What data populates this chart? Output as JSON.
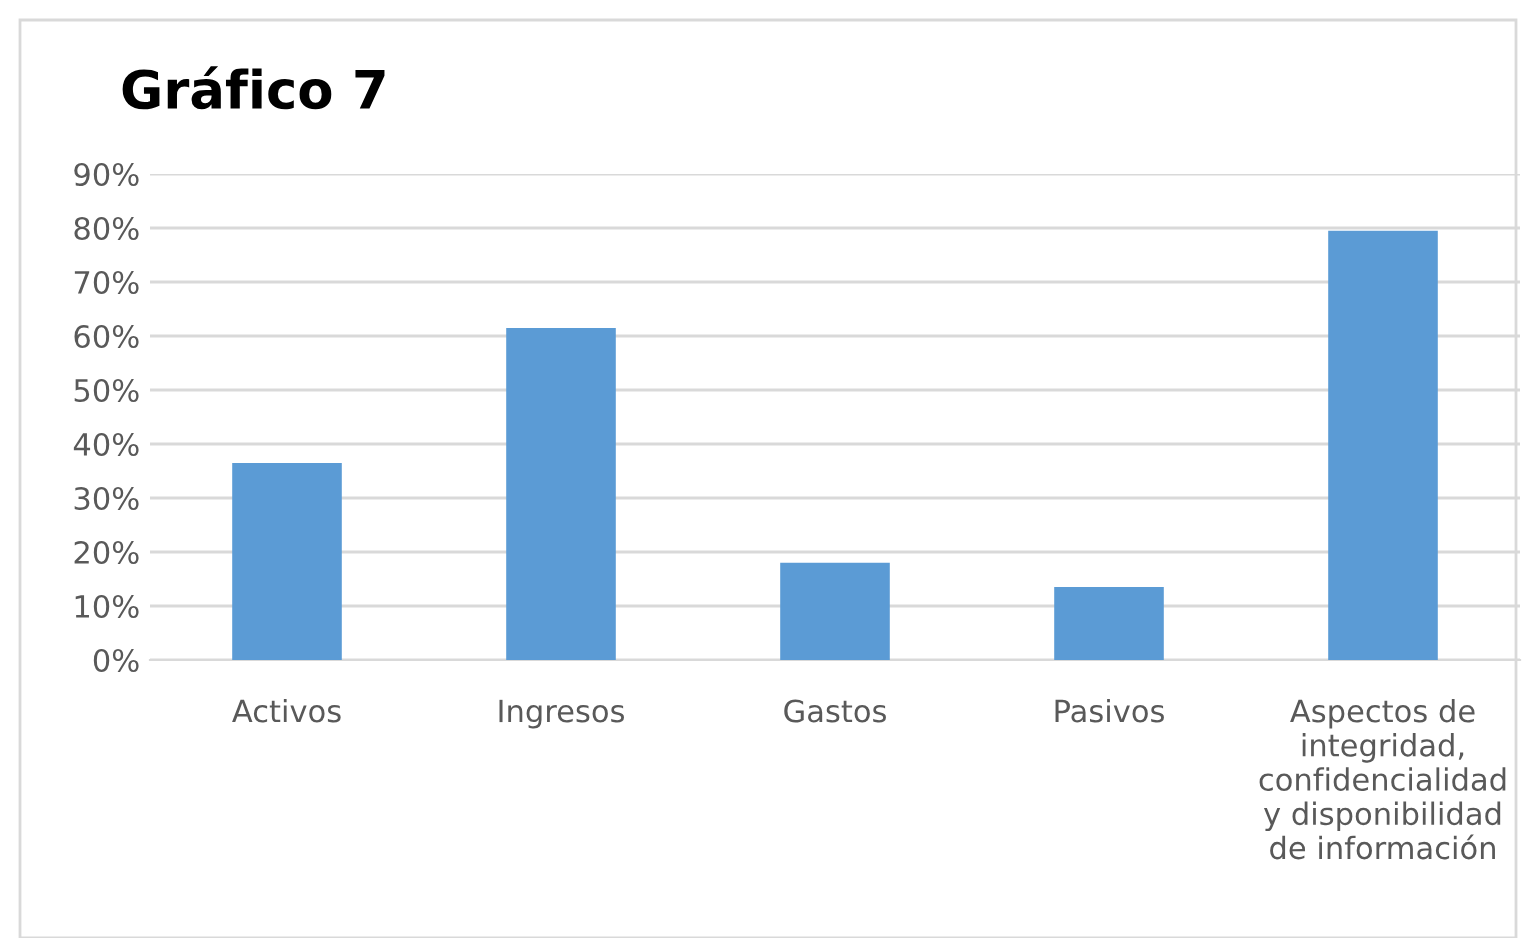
{
  "chart_data": {
    "type": "bar",
    "title": "Gráfico 7",
    "categories": [
      "Activos",
      "Ingresos",
      "Gastos",
      "Pasivos",
      "Aspectos de\nintegridad,\nconfidencialidad\ny disponibilidad\nde información"
    ],
    "values": [
      36.5,
      61.5,
      18,
      13.5,
      79.5
    ],
    "color": "#5b9bd5",
    "ylim": [
      0,
      90
    ],
    "yticks": [
      {
        "value": 0,
        "label": "0%"
      },
      {
        "value": 10,
        "label": "10%"
      },
      {
        "value": 20,
        "label": "20%"
      },
      {
        "value": 30,
        "label": "30%"
      },
      {
        "value": 40,
        "label": "40%"
      },
      {
        "value": 50,
        "label": "50%"
      },
      {
        "value": 60,
        "label": "60%"
      },
      {
        "value": 70,
        "label": "70%"
      },
      {
        "value": 80,
        "label": "80%"
      },
      {
        "value": 90,
        "label": "90%"
      }
    ],
    "grid": "y",
    "legend": false
  }
}
